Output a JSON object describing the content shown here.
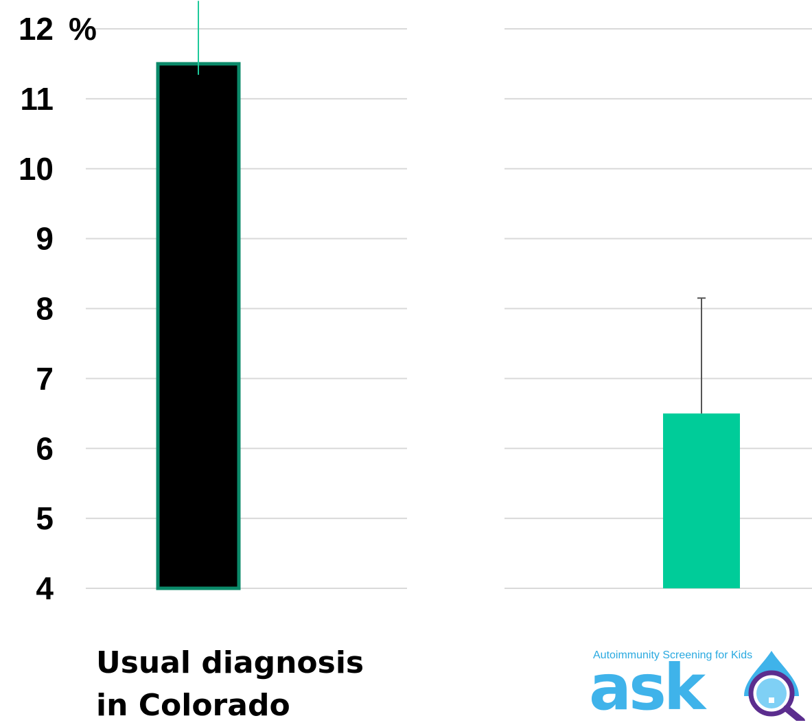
{
  "chart_data": {
    "type": "bar",
    "title": "",
    "xlabel": "",
    "ylabel": "",
    "y_unit": "%",
    "ylim": [
      4,
      12
    ],
    "yticks": [
      "4",
      "5",
      "6",
      "7",
      "8",
      "9",
      "10",
      "11",
      "12"
    ],
    "grid": true,
    "categories": [
      "Usual diagnosis in Colorado",
      ""
    ],
    "series": [
      {
        "values": [
          11.5,
          6.5
        ],
        "error_upper": [
          12.4,
          8.15
        ],
        "colors": [
          "#000000",
          "#00cc99"
        ]
      }
    ]
  },
  "category_label_lines": [
    "Usual diagnosis",
    "in Colorado"
  ],
  "logo": {
    "tagline": "Autoimmunity Screening for Kids",
    "wordmark": "ask",
    "icon": "magnifier-drop-icon",
    "colors": {
      "primary": "#3fb3ea",
      "ring": "#5b2d8e"
    }
  },
  "colors": {
    "bar_outline": "#0b8a6a",
    "grid": "#d9d9d9",
    "error_bar": "#555555"
  }
}
